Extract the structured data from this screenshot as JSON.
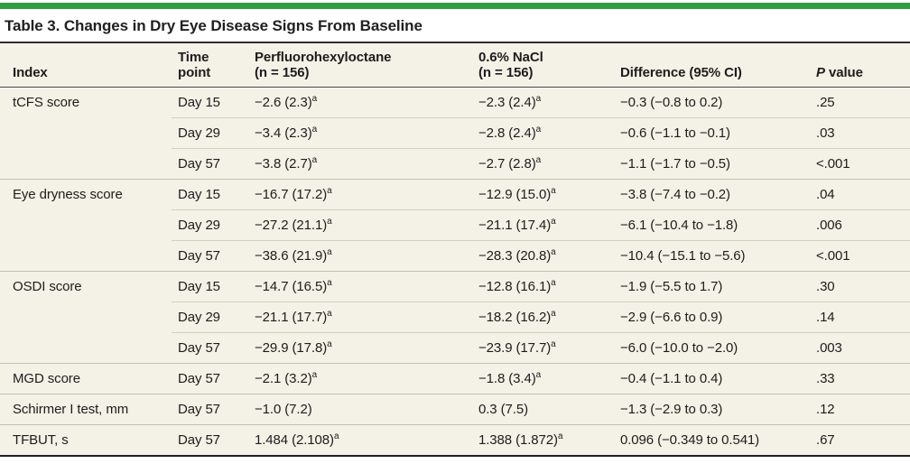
{
  "colors": {
    "accent_green": "#2f9e41",
    "table_background": "#f4f1e7",
    "text": "#1d1d1d",
    "rule_dark": "#2e2e2e",
    "separator_light": "#d3d0c1"
  },
  "title": "Table 3. Changes in Dry Eye Disease Signs From Baseline",
  "table": {
    "header": {
      "index": "Index",
      "time_line1": "Time",
      "time_line2": "point",
      "drug_line1": "Perfluorohexyloctane",
      "drug_line2": "(n = 156)",
      "nacl_line1": "0.6% NaCl",
      "nacl_line2": "(n = 156)",
      "difference": "Difference (95% CI)",
      "p_italic": "P",
      "p_rest": " value"
    },
    "rows": [
      {
        "index": "tCFS score",
        "time": "Day 15",
        "drug": "−2.6 (2.3)",
        "drug_sup": "a",
        "nacl": "−2.3 (2.4)",
        "nacl_sup": "a",
        "diff": "−0.3 (−0.8 to 0.2)",
        "p": ".25"
      },
      {
        "time": "Day 29",
        "drug": "−3.4 (2.3)",
        "drug_sup": "a",
        "nacl": "−2.8 (2.4)",
        "nacl_sup": "a",
        "diff": "−0.6 (−1.1 to −0.1)",
        "p": ".03"
      },
      {
        "time": "Day 57",
        "drug": "−3.8 (2.7)",
        "drug_sup": "a",
        "nacl": "−2.7 (2.8)",
        "nacl_sup": "a",
        "diff": "−1.1 (−1.7 to −0.5)",
        "p": "<.001"
      },
      {
        "index": "Eye dryness score",
        "time": "Day 15",
        "drug": "−16.7 (17.2)",
        "drug_sup": "a",
        "nacl": "−12.9 (15.0)",
        "nacl_sup": "a",
        "diff": "−3.8 (−7.4 to −0.2)",
        "p": ".04"
      },
      {
        "time": "Day 29",
        "drug": "−27.2 (21.1)",
        "drug_sup": "a",
        "nacl": "−21.1 (17.4)",
        "nacl_sup": "a",
        "diff": "−6.1 (−10.4 to −1.8)",
        "p": ".006"
      },
      {
        "time": "Day 57",
        "drug": "−38.6 (21.9)",
        "drug_sup": "a",
        "nacl": "−28.3 (20.8)",
        "nacl_sup": "a",
        "diff": "−10.4 (−15.1 to −5.6)",
        "p": "<.001"
      },
      {
        "index": "OSDI score",
        "time": "Day 15",
        "drug": "−14.7 (16.5)",
        "drug_sup": "a",
        "nacl": "−12.8 (16.1)",
        "nacl_sup": "a",
        "diff": "−1.9 (−5.5 to 1.7)",
        "p": ".30"
      },
      {
        "time": "Day 29",
        "drug": "−21.1 (17.7)",
        "drug_sup": "a",
        "nacl": "−18.2 (16.2)",
        "nacl_sup": "a",
        "diff": "−2.9 (−6.6 to 0.9)",
        "p": ".14"
      },
      {
        "time": "Day 57",
        "drug": "−29.9 (17.8)",
        "drug_sup": "a",
        "nacl": "−23.9 (17.7)",
        "nacl_sup": "a",
        "diff": "−6.0 (−10.0 to −2.0)",
        "p": ".003"
      },
      {
        "index": "MGD score",
        "time": "Day 57",
        "drug": "−2.1 (3.2)",
        "drug_sup": "a",
        "nacl": "−1.8 (3.4)",
        "nacl_sup": "a",
        "diff": "−0.4 (−1.1 to 0.4)",
        "p": ".33"
      },
      {
        "index": "Schirmer I test, mm",
        "time": "Day 57",
        "drug": "−1.0 (7.2)",
        "drug_sup": "",
        "nacl": "0.3 (7.5)",
        "nacl_sup": "",
        "diff": "−1.3 (−2.9 to 0.3)",
        "p": ".12"
      },
      {
        "index": "TFBUT, s",
        "time": "Day 57",
        "drug": "1.484 (2.108)",
        "drug_sup": "a",
        "nacl": "1.388 (1.872)",
        "nacl_sup": "a",
        "diff": "0.096 (−0.349 to 0.541)",
        "p": ".67"
      }
    ]
  }
}
